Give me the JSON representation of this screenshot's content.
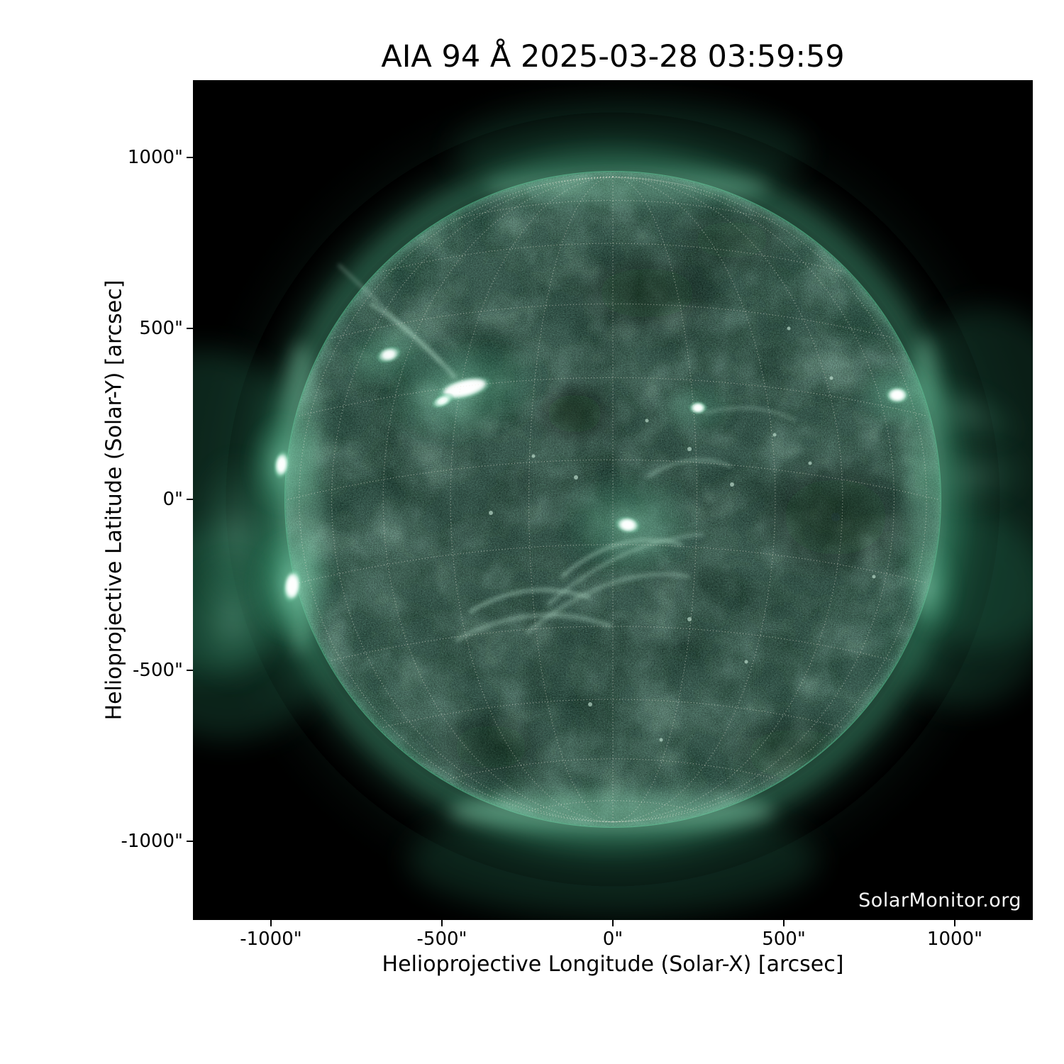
{
  "title": "AIA 94 Å 2025-03-28 03:59:59",
  "watermark": "SolarMonitor.org",
  "axes": {
    "x": {
      "label": "Helioprojective Longitude (Solar-X) [arcsec]",
      "ticks": [
        "-1000\"",
        "-500\"",
        "0\"",
        "500\"",
        "1000\""
      ]
    },
    "y": {
      "label": "Helioprojective Latitude (Solar-Y) [arcsec]",
      "ticks": [
        "1000\"",
        "500\"",
        "0\"",
        "-500\"",
        "-1000\""
      ]
    }
  },
  "chart_data": {
    "type": "heatmap",
    "title": "AIA 94 Å 2025-03-28 03:59:59",
    "instrument": "AIA",
    "wavelength": "94 Å",
    "datetime": "2025-03-28 03:59:59",
    "xlabel": "Helioprojective Longitude (Solar-X) [arcsec]",
    "ylabel": "Helioprojective Latitude (Solar-Y) [arcsec]",
    "xlim": [
      -1230,
      1230
    ],
    "ylim": [
      -1230,
      1230
    ],
    "x_ticks_arcsec": [
      -1000,
      -500,
      0,
      500,
      1000
    ],
    "y_ticks_arcsec": [
      1000,
      500,
      0,
      -500,
      -1000
    ],
    "grid": "heliographic dotted overlay, ~15 deg spacing, south pole visible on disk",
    "background_color": "#000000",
    "colormap": "black -> dark green -> teal -> white (AIA 94 green palette)",
    "palette": {
      "quiet_disk": "#0a2418",
      "mid_corona": "#1d5940",
      "bright_loops": "#5cb392",
      "active_region_core": "#ffffff",
      "grid_dots": "#efe9dc"
    },
    "solar_disk": {
      "center_arcsec": [
        0,
        0
      ],
      "radius_arcsec": 962,
      "radius_px": 463,
      "limb": "bright teal limb-brightened ring with faint outer corona glow"
    },
    "bright_features_arcsec": [
      {
        "name": "large active region NE",
        "x": -434,
        "y": 324,
        "intensity": "saturated white"
      },
      {
        "name": "secondary active region NE",
        "x": -657,
        "y": 424,
        "intensity": "bright"
      },
      {
        "name": "central active region with loop fan",
        "x": 44,
        "y": -75,
        "intensity": "bright"
      },
      {
        "name": "compact bright point E of center",
        "x": 258,
        "y": 272,
        "intensity": "bright"
      },
      {
        "name": "west-limb active region",
        "x": 833,
        "y": 305,
        "intensity": "saturated white"
      },
      {
        "name": "east-limb emission upper",
        "x": -970,
        "y": 102,
        "intensity": "bright, off-limb fan"
      },
      {
        "name": "east-limb emission lower",
        "x": -939,
        "y": -254,
        "intensity": "saturated white, off-limb fan"
      },
      {
        "name": "southwest-limb glow",
        "x": 931,
        "y": -262,
        "intensity": "moderate"
      }
    ],
    "dark_features_arcsec": [
      {
        "name": "dark lane W of NE active region",
        "x": -112,
        "y": 252
      },
      {
        "name": "dark region N central",
        "x": 100,
        "y": 605
      },
      {
        "name": "dark region E of center",
        "x": 652,
        "y": -52
      }
    ]
  }
}
